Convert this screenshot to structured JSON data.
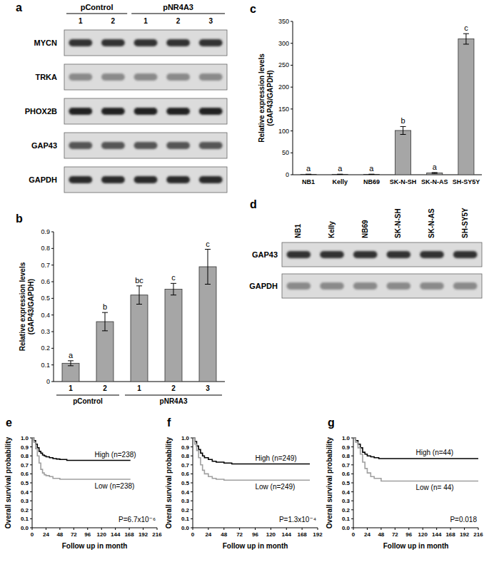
{
  "chart_data": [
    {
      "type": "bar",
      "annotations": [
        "b"
      ],
      "y_label": [
        "Relative expression levels",
        "(GAP43/GAPDH)"
      ],
      "categories": [
        "1",
        "2",
        "1",
        "2",
        "3"
      ],
      "groups": [
        {
          "label": "pControl",
          "count": 2
        },
        {
          "label": "pNR4A3",
          "count": 3
        }
      ],
      "values": [
        0.11,
        0.36,
        0.52,
        0.555,
        0.69
      ],
      "errors": [
        0.015,
        0.055,
        0.055,
        0.035,
        0.105
      ],
      "significance": [
        "a",
        "b",
        "bc",
        "c",
        "c"
      ],
      "color": "#a6a6a6",
      "ylim": [
        0,
        0.9
      ],
      "yticks": [
        0,
        0.1,
        0.2,
        0.3,
        0.4,
        0.5,
        0.6,
        0.7,
        0.8,
        0.9
      ]
    },
    {
      "type": "bar",
      "annotations": [
        "c"
      ],
      "y_label": [
        "Relative expression levels",
        "(GAP43/GAPDH)"
      ],
      "categories": [
        "NB1",
        "Kelly",
        "NB69",
        "SK-N-SH",
        "SK-N-AS",
        "SH-SY5Y"
      ],
      "values": [
        1,
        1,
        1,
        101,
        4,
        310
      ],
      "errors": [
        0.3,
        0.3,
        0.3,
        9,
        1,
        12
      ],
      "significance": [
        "a",
        "a",
        "a",
        "b",
        "a",
        "c"
      ],
      "color": "#a6a6a6",
      "ylim": [
        0,
        350
      ],
      "yticks": [
        0,
        50,
        100,
        150,
        200,
        250,
        300,
        350
      ]
    },
    {
      "type": "line",
      "line_style": "step",
      "annotations": [
        "e",
        "P=6.7x10⁻⁶"
      ],
      "x_label": "Follow up in month",
      "y_label": "Overall survival probability",
      "xlim": [
        0,
        216
      ],
      "xticks": [
        0,
        24,
        48,
        72,
        96,
        120,
        144,
        168,
        192,
        216
      ],
      "ylim": [
        0,
        1
      ],
      "yticks": [
        {
          "value": 0,
          "label": "0.0"
        },
        0.1,
        0.2,
        0.3,
        0.4,
        0.5,
        0.6,
        0.7,
        0.8,
        0.9,
        {
          "value": 1,
          "label": "1.0"
        }
      ],
      "series": [
        {
          "name": "High (n=238)",
          "color": "#000000",
          "x": [
            0,
            3,
            6,
            9,
            12,
            15,
            18,
            21,
            24,
            30,
            36,
            42,
            48,
            60,
            72,
            170
          ],
          "values": [
            1,
            0.97,
            0.93,
            0.89,
            0.85,
            0.83,
            0.81,
            0.8,
            0.79,
            0.78,
            0.77,
            0.765,
            0.76,
            0.75,
            0.75,
            0.75
          ]
        },
        {
          "name": "Low (n=238)",
          "color": "#a0a0a0",
          "x": [
            0,
            3,
            6,
            9,
            12,
            15,
            18,
            21,
            24,
            30,
            36,
            48,
            60,
            170
          ],
          "values": [
            1,
            0.95,
            0.88,
            0.8,
            0.72,
            0.65,
            0.61,
            0.59,
            0.58,
            0.57,
            0.55,
            0.54,
            0.54,
            0.54
          ]
        }
      ]
    },
    {
      "type": "line",
      "line_style": "step",
      "annotations": [
        "f",
        "P=1.3x10⁻⁴"
      ],
      "x_label": "Follow up in month",
      "y_label": "Overall survival probability",
      "xlim": [
        0,
        192
      ],
      "xticks": [
        0,
        24,
        48,
        72,
        96,
        120,
        144,
        168,
        192
      ],
      "ylim": [
        0,
        1
      ],
      "yticks": [
        {
          "value": 0,
          "label": "0.0"
        },
        0.1,
        0.2,
        0.3,
        0.4,
        0.5,
        0.6,
        0.7,
        0.8,
        0.9,
        {
          "value": 1,
          "label": "1.0"
        }
      ],
      "series": [
        {
          "name": "High (n=249)",
          "color": "#000000",
          "x": [
            0,
            3,
            6,
            9,
            12,
            15,
            18,
            24,
            30,
            36,
            48,
            60,
            72,
            180
          ],
          "values": [
            1,
            0.96,
            0.91,
            0.87,
            0.83,
            0.8,
            0.78,
            0.76,
            0.74,
            0.73,
            0.72,
            0.71,
            0.71,
            0.71
          ]
        },
        {
          "name": "Low (n=249)",
          "color": "#a0a0a0",
          "x": [
            0,
            3,
            6,
            9,
            12,
            15,
            18,
            24,
            30,
            36,
            48,
            60,
            180
          ],
          "values": [
            1,
            0.93,
            0.86,
            0.78,
            0.7,
            0.64,
            0.6,
            0.57,
            0.55,
            0.54,
            0.53,
            0.53,
            0.53
          ]
        }
      ]
    },
    {
      "type": "line",
      "line_style": "step",
      "annotations": [
        "g",
        "P=0.018"
      ],
      "x_label": "Follow up in month",
      "y_label": "Overall survival probability",
      "xlim": [
        0,
        216
      ],
      "xticks": [
        0,
        24,
        48,
        72,
        96,
        120,
        144,
        168,
        192,
        216
      ],
      "ylim": [
        0,
        1
      ],
      "yticks": [
        {
          "value": 0,
          "label": "0.0"
        },
        0.1,
        0.2,
        0.3,
        0.4,
        0.5,
        0.6,
        0.7,
        0.8,
        0.9,
        {
          "value": 1,
          "label": "1.0"
        }
      ],
      "series": [
        {
          "name": "High (n=44)",
          "color": "#000000",
          "x": [
            0,
            4,
            8,
            12,
            16,
            20,
            24,
            30,
            36,
            44,
            48,
            216
          ],
          "values": [
            1,
            0.97,
            0.93,
            0.89,
            0.84,
            0.82,
            0.8,
            0.79,
            0.78,
            0.77,
            0.77,
            0.77
          ]
        },
        {
          "name": "Low (n= 44)",
          "color": "#a0a0a0",
          "x": [
            0,
            4,
            8,
            12,
            16,
            20,
            24,
            30,
            36,
            48,
            216
          ],
          "values": [
            1,
            0.95,
            0.89,
            0.82,
            0.73,
            0.66,
            0.61,
            0.57,
            0.55,
            0.52,
            0.52
          ]
        }
      ]
    }
  ],
  "blots": [
    {
      "annotations": [
        "a"
      ],
      "groups": [
        {
          "label": "pControl",
          "lanes": [
            "1",
            "2"
          ]
        },
        {
          "label": "pNR4A3",
          "lanes": [
            "1",
            "2",
            "3"
          ]
        }
      ],
      "rows": [
        "MYCN",
        "TRKA",
        "PHOX2B",
        "GAP43",
        "GAPDH"
      ]
    },
    {
      "annotations": [
        "d"
      ],
      "lanes": [
        "NB1",
        "Kelly",
        "NB69",
        "SK-N-SH",
        "SK-N-AS",
        "SH-SY5Y"
      ],
      "rows": [
        "GAP43",
        "GAPDH"
      ]
    }
  ]
}
